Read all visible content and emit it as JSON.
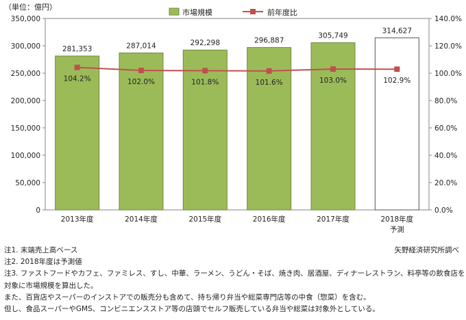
{
  "chart_data": {
    "type": "bar",
    "unit_label": "（単位：億円）",
    "categories": [
      "2013年度",
      "2014年度",
      "2015年度",
      "2016年度",
      "2017年度",
      "2018年度"
    ],
    "category_sublabels": [
      "",
      "",
      "",
      "",
      "",
      "予測"
    ],
    "series": [
      {
        "name": "市場規模",
        "type": "bar",
        "axis": "left",
        "values": [
          281353,
          287014,
          292298,
          296887,
          305749,
          314627
        ],
        "value_labels": [
          "281,353",
          "287,014",
          "292,298",
          "296,887",
          "305,749",
          "314,627"
        ],
        "forecast_index": 5,
        "color": "#9bbb59",
        "forecast_fill": "#ffffff"
      },
      {
        "name": "前年度比",
        "type": "line",
        "axis": "right",
        "values": [
          104.2,
          102.0,
          101.8,
          101.6,
          103.0,
          102.9
        ],
        "value_labels": [
          "104.2%",
          "102.0%",
          "101.8%",
          "101.6%",
          "103.0%",
          "102.9%"
        ],
        "color": "#c0504d"
      }
    ],
    "left_axis": {
      "ylim": [
        0,
        350000
      ],
      "ticks": [
        "0",
        "50,000",
        "100,000",
        "150,000",
        "200,000",
        "250,000",
        "300,000",
        "350,000"
      ]
    },
    "right_axis": {
      "ylim": [
        0,
        140
      ],
      "ticks": [
        "0.0%",
        "20.0%",
        "40.0%",
        "60.0%",
        "80.0%",
        "100.0%",
        "120.0%",
        "140.0%"
      ]
    },
    "legend_position": "top-center",
    "grid": false
  },
  "notes": [
    "注1. 末端売上高ベース",
    "注2. 2018年度は予測値",
    "注3. ファストフードやカフェ、ファミレス、すし、中華、ラーメン、うどん・そば、焼き肉、居酒屋、ディナーレストラン、料亭等の飲食店を",
    "対象に市場規模を算出した。",
    "また、百貨店やスーパーのインストアでの販売分も含めて、持ち帰り弁当や総菜専門店等の中食（惣菜）を含む。",
    "但し、食品スーパーやGMS、コンビニエンスストア等の店頭でセルフ販売している弁当や総菜は対象外としている。"
  ],
  "source": "矢野経済研究所調べ"
}
